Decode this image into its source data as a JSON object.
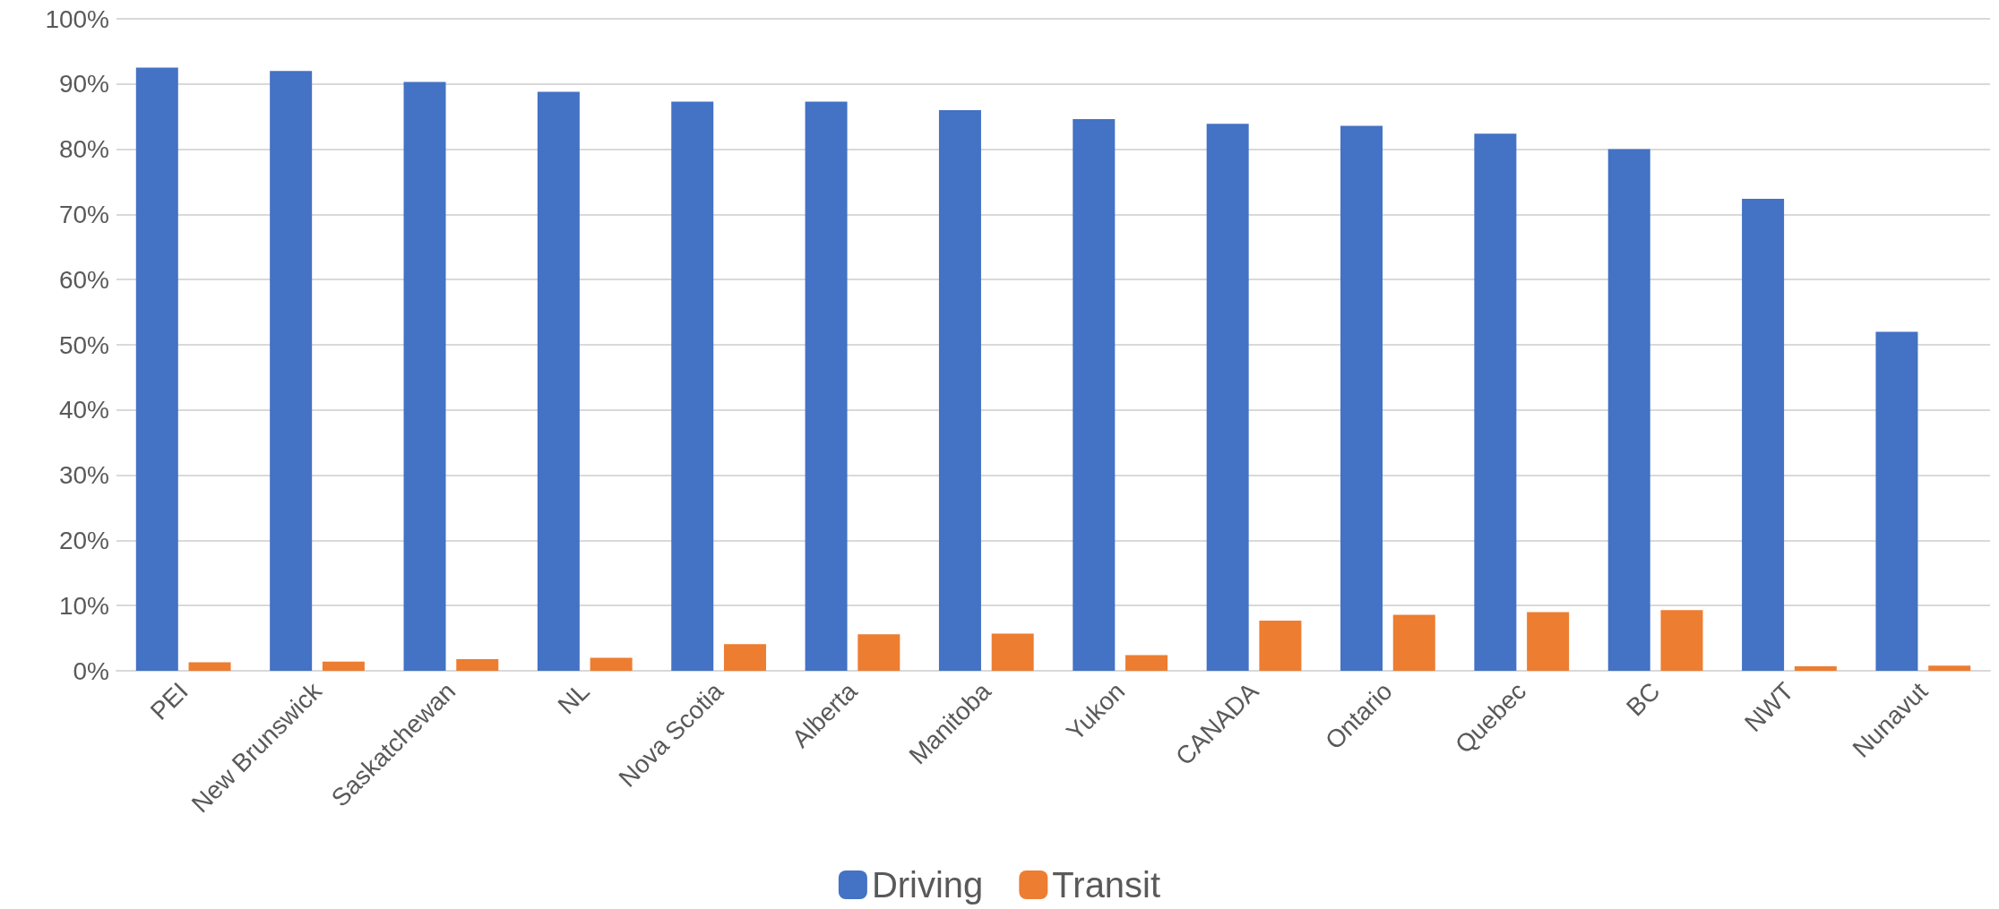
{
  "chart_data": {
    "type": "bar",
    "categories": [
      "PEI",
      "New Brunswick",
      "Saskatchewan",
      "NL",
      "Nova Scotia",
      "Alberta",
      "Manitoba",
      "Yukon",
      "CANADA",
      "Ontario",
      "Quebec",
      "BC",
      "NWT",
      "Nunavut"
    ],
    "series": [
      {
        "name": "Driving",
        "color": "#4472c4",
        "values": [
          92.5,
          92,
          90.3,
          88.8,
          87.3,
          87.3,
          86,
          84.6,
          83.9,
          83.6,
          82.4,
          80,
          72.4,
          52
        ]
      },
      {
        "name": "Transit",
        "color": "#ed7d31",
        "values": [
          1.3,
          1.4,
          1.8,
          2,
          4.1,
          5.6,
          5.7,
          2.4,
          7.7,
          8.6,
          9,
          9.3,
          0.7,
          0.8
        ]
      }
    ],
    "ylim": [
      0,
      100
    ],
    "yticks": [
      {
        "value": 0,
        "label": "0%"
      },
      {
        "value": 10,
        "label": "10%"
      },
      {
        "value": 20,
        "label": "20%"
      },
      {
        "value": 30,
        "label": "30%"
      },
      {
        "value": 40,
        "label": "40%"
      },
      {
        "value": 50,
        "label": "50%"
      },
      {
        "value": 60,
        "label": "60%"
      },
      {
        "value": 70,
        "label": "70%"
      },
      {
        "value": 80,
        "label": "80%"
      },
      {
        "value": 90,
        "label": "90%"
      },
      {
        "value": 100,
        "label": "100%"
      }
    ],
    "grid": "y",
    "legend": "bottom"
  }
}
